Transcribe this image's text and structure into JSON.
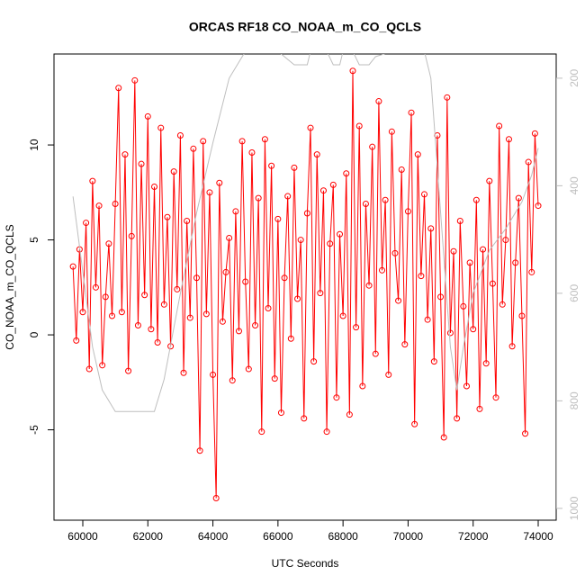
{
  "chart_data": {
    "type": "line",
    "title": "ORCAS RF18 CO_NOAA_m_CO_QCLS",
    "x_label": "UTC Seconds",
    "y_label": "CO_NOAA_m_CO_QCLS",
    "xlim": [
      59115,
      74553
    ],
    "xticks": [
      60000,
      62000,
      64000,
      66000,
      68000,
      70000,
      72000,
      74000
    ],
    "ylim": [
      -9.76,
      14.79
    ],
    "yticks": [
      -5,
      0,
      5,
      10
    ],
    "y2lim": [
      1022,
      155
    ],
    "y2ticks": [
      200,
      400,
      600,
      800,
      1000
    ],
    "x": [
      59700,
      59800,
      59900,
      60000,
      60100,
      60200,
      60300,
      60400,
      60500,
      60600,
      60700,
      60800,
      60900,
      61000,
      61100,
      61200,
      61300,
      61400,
      61500,
      61600,
      61700,
      61800,
      61900,
      62000,
      62100,
      62200,
      62300,
      62400,
      62500,
      62600,
      62700,
      62800,
      62900,
      63000,
      63100,
      63200,
      63300,
      63400,
      63500,
      63600,
      63700,
      63800,
      63900,
      64000,
      64100,
      64200,
      64300,
      64400,
      64500,
      64600,
      64700,
      64800,
      64900,
      65000,
      65100,
      65200,
      65300,
      65400,
      65500,
      65600,
      65700,
      65800,
      65900,
      66000,
      66100,
      66200,
      66300,
      66400,
      66500,
      66600,
      66700,
      66800,
      66900,
      67000,
      67100,
      67200,
      67300,
      67400,
      67500,
      67600,
      67700,
      67800,
      67900,
      68000,
      68100,
      68200,
      68300,
      68400,
      68500,
      68600,
      68700,
      68800,
      68900,
      69000,
      69100,
      69200,
      69300,
      69400,
      69500,
      69600,
      69700,
      69800,
      69900,
      70000,
      70100,
      70200,
      70300,
      70400,
      70500,
      70600,
      70700,
      70800,
      70900,
      71000,
      71100,
      71200,
      71300,
      71400,
      71500,
      71600,
      71700,
      71800,
      71900,
      72000,
      72100,
      72200,
      72300,
      72400,
      72500,
      72600,
      72700,
      72800,
      72900,
      73000,
      73100,
      73200,
      73300,
      73400,
      73500,
      73600,
      73700,
      73800,
      73900,
      74000
    ],
    "series": [
      {
        "color": "#ff0000",
        "values": [
          3.6,
          -0.3,
          4.5,
          1.2,
          5.9,
          -1.8,
          8.1,
          2.5,
          6.8,
          -1.6,
          2.0,
          4.8,
          1.0,
          6.9,
          13.0,
          1.2,
          9.5,
          -1.9,
          5.2,
          13.4,
          0.5,
          9.0,
          2.1,
          11.5,
          0.3,
          7.8,
          -0.4,
          10.9,
          1.6,
          6.2,
          -0.6,
          8.6,
          2.4,
          10.5,
          -2.0,
          6.0,
          0.9,
          9.8,
          3.0,
          -6.1,
          10.2,
          1.1,
          7.5,
          -2.1,
          -8.6,
          8.0,
          0.7,
          3.3,
          5.1,
          -2.4,
          6.5,
          0.2,
          10.2,
          2.8,
          -1.8,
          9.6,
          0.5,
          7.2,
          -5.1,
          10.3,
          1.4,
          8.9,
          -2.3,
          6.1,
          -4.1,
          3.0,
          7.3,
          -0.2,
          8.8,
          1.9,
          5.0,
          -4.4,
          6.4,
          10.9,
          -1.4,
          9.5,
          2.2,
          7.6,
          -5.1,
          4.8,
          7.9,
          -3.3,
          5.3,
          1.0,
          8.5,
          -4.2,
          13.9,
          0.4,
          11.0,
          -2.7,
          6.9,
          2.6,
          9.9,
          -1.0,
          12.3,
          3.4,
          7.1,
          -2.1,
          10.7,
          4.3,
          1.8,
          8.7,
          -0.5,
          6.5,
          11.7,
          -4.7,
          9.5,
          3.1,
          7.4,
          0.8,
          5.6,
          -1.4,
          10.5,
          2.0,
          -5.4,
          12.5,
          0.1,
          4.4,
          -4.4,
          6.0,
          1.5,
          -2.7,
          3.8,
          0.3,
          7.1,
          -3.9,
          4.5,
          -1.5,
          8.1,
          2.7,
          -3.3,
          11.0,
          1.6,
          5.0,
          10.3,
          -0.6,
          3.8,
          7.2,
          1.0,
          -5.2,
          9.1,
          3.3,
          10.6,
          6.8
        ]
      },
      {
        "color": "#bebebe",
        "axis": "y2",
        "x": [
          59700,
          60000,
          60300,
          60600,
          61000,
          61500,
          62000,
          62200,
          62500,
          63000,
          63500,
          64000,
          64500,
          65000,
          65500,
          66000,
          66500,
          66900,
          67000,
          67200,
          67500,
          67700,
          67900,
          68000,
          68300,
          68500,
          68800,
          69000,
          69500,
          70000,
          70500,
          70700,
          71000,
          71300,
          71500,
          71700,
          72000,
          72500,
          73000,
          73500,
          73800,
          74000
        ],
        "values": [
          420,
          560,
          700,
          780,
          820,
          820,
          820,
          820,
          760,
          600,
          450,
          320,
          200,
          150,
          140,
          150,
          175,
          175,
          150,
          140,
          150,
          175,
          175,
          150,
          150,
          175,
          175,
          160,
          150,
          150,
          150,
          200,
          450,
          700,
          780,
          700,
          600,
          520,
          480,
          430,
          380,
          330
        ]
      }
    ]
  }
}
